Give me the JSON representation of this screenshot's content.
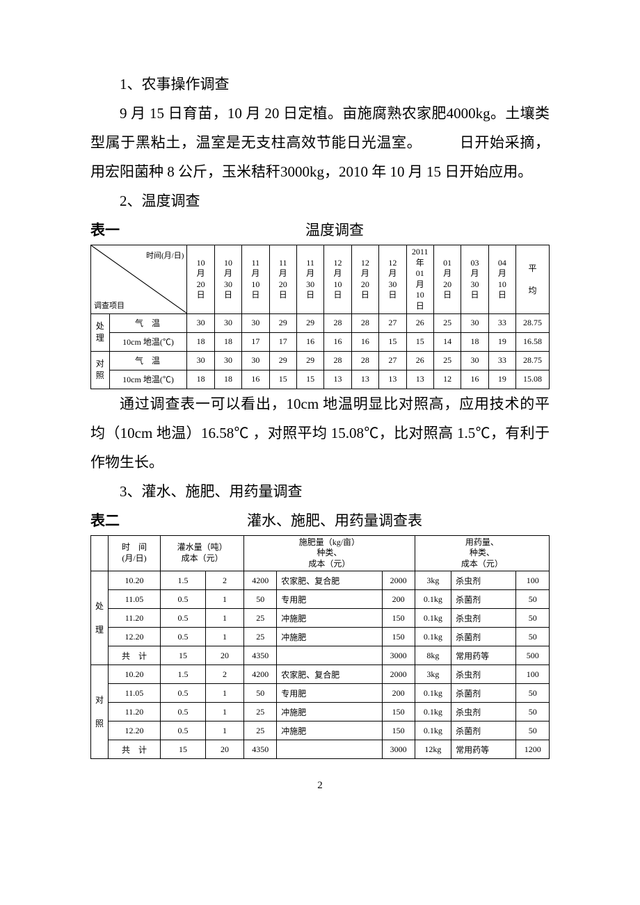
{
  "section1": {
    "heading": "1、农事操作调查",
    "body": "9 月 15 日育苗，10 月 20 日定植。亩施腐熟农家肥4000kg。土壤类型属于黑粘土，温室是无支柱高效节能日光温室。　　　日开始采摘，用宏阳菌种 8 公斤，玉米秸秆3000kg，2010 年 10 月 15 日开始应用。"
  },
  "section2": {
    "heading": "2、温度调查",
    "table_label": "表一",
    "table_title": "温度调查",
    "diag_top": "时间(月/日)",
    "diag_bottom": "调查项目",
    "date_cols": [
      "10月20日",
      "10月30日",
      "11月10日",
      "11月20日",
      "11月30日",
      "12月10日",
      "12月20日",
      "12月30日",
      "2011年01月10日",
      "01月20日",
      "03月30日",
      "04月10日"
    ],
    "avg_label": "平均",
    "row_group_treat": "处理",
    "row_group_ctrl": "对照",
    "row_air": "气温",
    "row_soil": "10cm 地温(℃)",
    "treat_air": [
      30,
      30,
      30,
      29,
      29,
      28,
      28,
      27,
      26,
      25,
      30,
      33,
      "28.75"
    ],
    "treat_soil": [
      18,
      18,
      17,
      17,
      16,
      16,
      16,
      15,
      15,
      14,
      18,
      19,
      "16.58"
    ],
    "ctrl_air": [
      30,
      30,
      30,
      29,
      29,
      28,
      28,
      27,
      26,
      25,
      30,
      33,
      "28.75"
    ],
    "ctrl_soil": [
      18,
      18,
      16,
      15,
      15,
      13,
      13,
      13,
      13,
      12,
      16,
      19,
      "15.08"
    ],
    "conclusion": "通过调查表一可以看出，10cm 地温明显比对照高，应用技术的平均（10cm 地温）16.58℃ ，对照平均 15.08℃，比对照高 1.5℃，有利于作物生长。"
  },
  "section3": {
    "heading": "3、灌水、施肥、用药量调查",
    "table_label": "表二",
    "table_title": "灌水、施肥、用药量调查表",
    "head_time": "时　间(月/日)",
    "head_water": "灌水量（吨）成本（元）",
    "head_fert": "施肥量（kg/亩）种类、成本（元）",
    "head_med": "用药量、种类、成本（元）",
    "row_group_treat": "处理",
    "row_group_ctrl": "对照",
    "total_label": "共　计",
    "treat_rows": [
      {
        "time": "10.20",
        "water_a": "1.5",
        "water_b": "2",
        "fert_a": "4200",
        "fert_b": "农家肥、复合肥",
        "fert_c": "2000",
        "med_a": "3kg",
        "med_b": "杀虫剂",
        "med_c": "100"
      },
      {
        "time": "11.05",
        "water_a": "0.5",
        "water_b": "1",
        "fert_a": "50",
        "fert_b": "专用肥",
        "fert_c": "200",
        "med_a": "0.1kg",
        "med_b": "杀菌剂",
        "med_c": "50"
      },
      {
        "time": "11.20",
        "water_a": "0.5",
        "water_b": "1",
        "fert_a": "25",
        "fert_b": "冲施肥",
        "fert_c": "150",
        "med_a": "0.1kg",
        "med_b": "杀虫剂",
        "med_c": "50"
      },
      {
        "time": "12.20",
        "water_a": "0.5",
        "water_b": "1",
        "fert_a": "25",
        "fert_b": "冲施肥",
        "fert_c": "150",
        "med_a": "0.1kg",
        "med_b": "杀菌剂",
        "med_c": "50"
      }
    ],
    "treat_total": {
      "water_a": "15",
      "water_b": "20",
      "fert_a": "4350",
      "fert_b": "",
      "fert_c": "3000",
      "med_a": "8kg",
      "med_b": "常用药等",
      "med_c": "500"
    },
    "ctrl_rows": [
      {
        "time": "10.20",
        "water_a": "1.5",
        "water_b": "2",
        "fert_a": "4200",
        "fert_b": "农家肥、复合肥",
        "fert_c": "2000",
        "med_a": "3kg",
        "med_b": "杀虫剂",
        "med_c": "100"
      },
      {
        "time": "11.05",
        "water_a": "0.5",
        "water_b": "1",
        "fert_a": "50",
        "fert_b": "专用肥",
        "fert_c": "200",
        "med_a": "0.1kg",
        "med_b": "杀菌剂",
        "med_c": "50"
      },
      {
        "time": "11.20",
        "water_a": "0.5",
        "water_b": "1",
        "fert_a": "25",
        "fert_b": "冲施肥",
        "fert_c": "150",
        "med_a": "0.1kg",
        "med_b": "杀虫剂",
        "med_c": "50"
      },
      {
        "time": "12.20",
        "water_a": "0.5",
        "water_b": "1",
        "fert_a": "25",
        "fert_b": "冲施肥",
        "fert_c": "150",
        "med_a": "0.1kg",
        "med_b": "杀菌剂",
        "med_c": "50"
      }
    ],
    "ctrl_total": {
      "water_a": "15",
      "water_b": "20",
      "fert_a": "4350",
      "fert_b": "",
      "fert_c": "3000",
      "med_a": "12kg",
      "med_b": "常用药等",
      "med_c": "1200"
    }
  },
  "page_number": "2"
}
